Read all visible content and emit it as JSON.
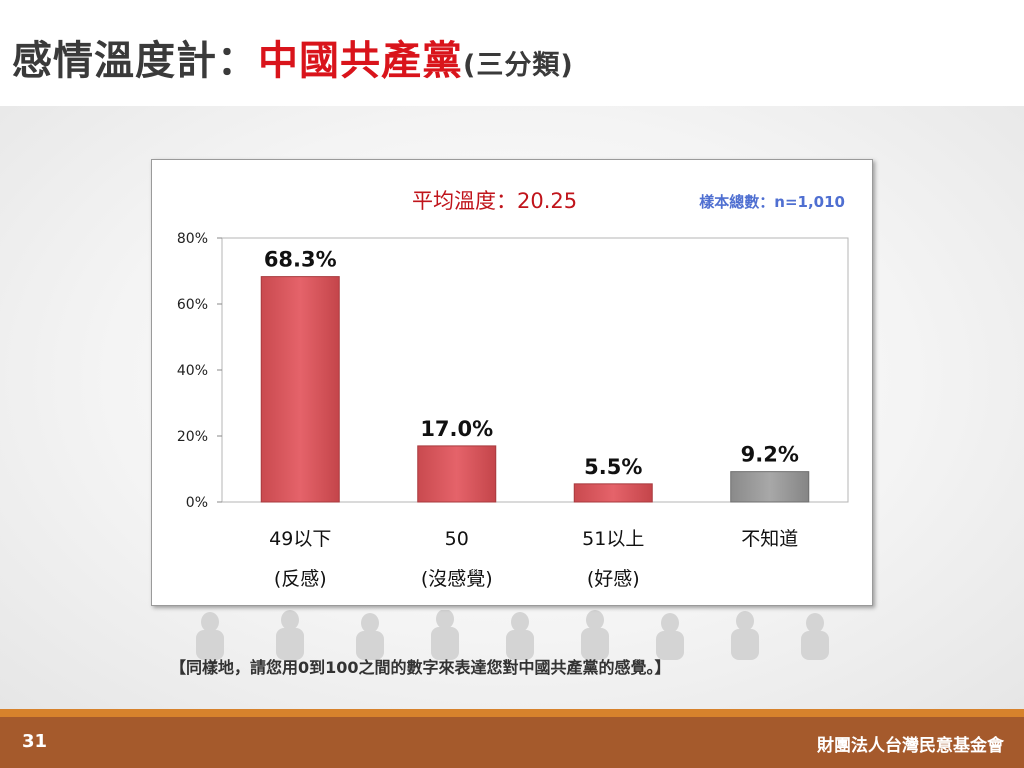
{
  "header": {
    "title_prefix": "感情溫度計：",
    "title_accent": "中國共產黨",
    "title_suffix": "(三分類)"
  },
  "colors": {
    "accent_red": "#d9141b",
    "bar_red": "#e05a5e",
    "bar_gray": "#9a9a9a",
    "sample_blue": "#4f6fd1",
    "footer_brown": "#a55a2c",
    "footer_orange": "#d7822c"
  },
  "chart_data": {
    "type": "bar",
    "categories": [
      {
        "line1": "49以下",
        "line2": "(反感)",
        "value": 68.3,
        "label": "68.3%",
        "color": "red"
      },
      {
        "line1": "50",
        "line2": "(沒感覺)",
        "value": 17.0,
        "label": "17.0%",
        "color": "red"
      },
      {
        "line1": "51以上",
        "line2": "(好感)",
        "value": 5.5,
        "label": "5.5%",
        "color": "red"
      },
      {
        "line1": "不知道",
        "line2": "",
        "value": 9.2,
        "label": "9.2%",
        "color": "gray"
      }
    ],
    "ylim": [
      0,
      80
    ],
    "yticks": [
      {
        "value": 0,
        "label": "0%"
      },
      {
        "value": 20,
        "label": "20%"
      },
      {
        "value": 40,
        "label": "40%"
      },
      {
        "value": 60,
        "label": "60%"
      },
      {
        "value": 80,
        "label": "80%"
      }
    ],
    "grid": false,
    "average_label": "平均溫度：20.25",
    "sample_label": "樣本總數：n=1,010"
  },
  "question": "【同樣地，請您用0到100之間的數字來表達您對中國共產黨的感覺。】",
  "footer": {
    "page_number": "31",
    "organization": "財團法人台灣民意基金會"
  }
}
